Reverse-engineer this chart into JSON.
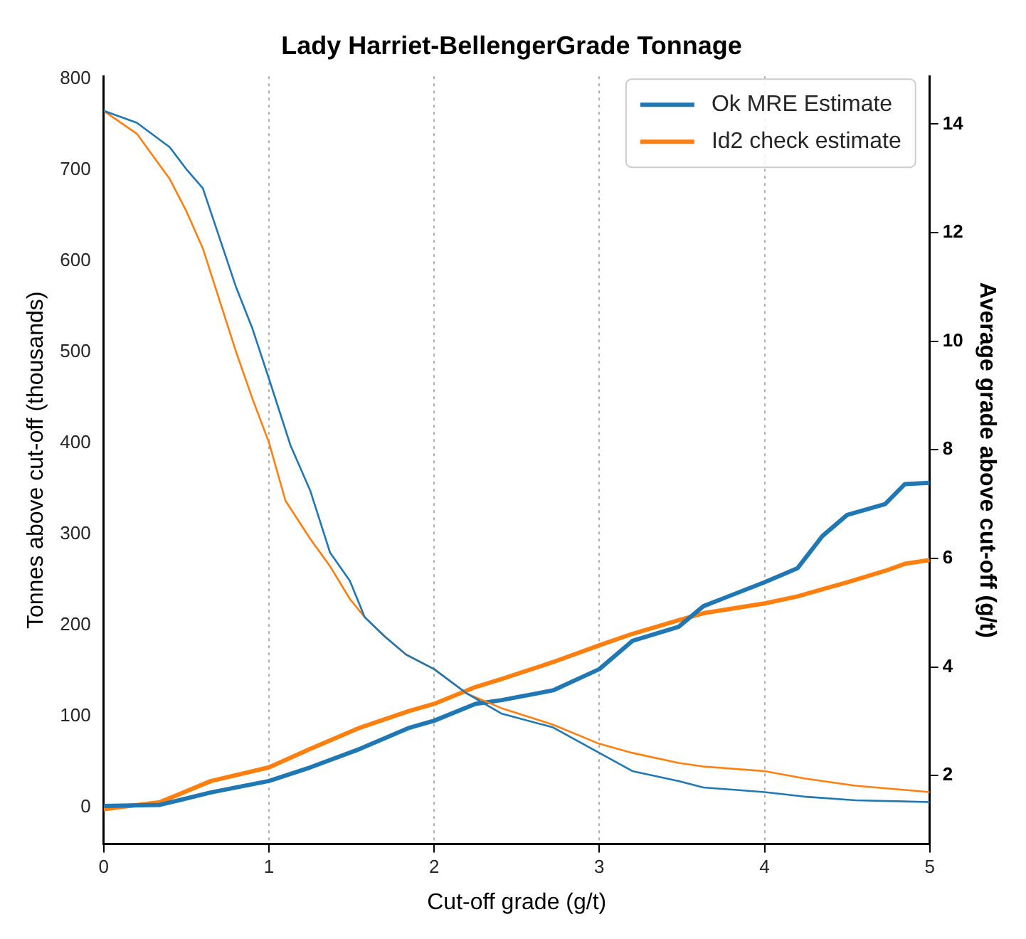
{
  "chart_data": {
    "type": "line",
    "title": "Lady Harriet-BellengerGrade Tonnage",
    "xlabel": "Cut-off grade (g/t)",
    "ylabel": "Tonnes above cut-off (thousands)",
    "y2label": "Average grade above cut-off (g/t)",
    "xlim": [
      0,
      5
    ],
    "xticks": [
      0,
      1,
      2,
      3,
      4,
      5
    ],
    "ylim": [
      -40,
      803
    ],
    "yticks": [
      0,
      100,
      200,
      300,
      400,
      500,
      600,
      700,
      800
    ],
    "y2lim": [
      0.74,
      14.88
    ],
    "y2ticks": [
      2,
      4,
      6,
      8,
      10,
      12,
      14
    ],
    "grid": "x",
    "legend": "top right",
    "series": [
      {
        "color": "#1f77b4",
        "x": [
          0,
          0.2,
          0.4,
          0.5,
          0.6,
          0.8,
          0.9,
          1.0,
          1.13,
          1.25,
          1.37,
          1.49,
          1.58,
          1.7,
          1.83,
          2.0,
          2.2,
          2.41,
          2.72,
          3.0,
          3.2,
          3.48,
          3.63,
          4.0,
          4.24,
          4.55,
          5.0
        ],
        "values": [
          765,
          752,
          725,
          701,
          680,
          572,
          526,
          471,
          398,
          348,
          280,
          249,
          209,
          188,
          168,
          152,
          125,
          103,
          88,
          60,
          40,
          29,
          22,
          17,
          12,
          8,
          6
        ]
      },
      {
        "color": "#ff7f0e",
        "x": [
          0,
          0.2,
          0.4,
          0.5,
          0.6,
          0.8,
          0.9,
          1.0,
          1.1,
          1.25,
          1.37,
          1.49,
          1.58,
          1.7,
          1.83,
          2.0,
          2.2,
          2.41,
          2.72,
          3.0,
          3.2,
          3.48,
          3.63,
          4.0,
          4.24,
          4.55,
          5.0
        ],
        "values": [
          765,
          740,
          690,
          655,
          614,
          501,
          449,
          401,
          337,
          295,
          265,
          229,
          209,
          188,
          168,
          152,
          125,
          109,
          91,
          70,
          60,
          49,
          45,
          40,
          32,
          24,
          17
        ]
      },
      {
        "name": "Ok MRE Estimate",
        "color": "#1f77b4",
        "axis": "y2",
        "x": [
          0,
          0.34,
          0.65,
          1.0,
          1.25,
          1.55,
          1.85,
          2.0,
          2.25,
          2.41,
          2.72,
          3.0,
          3.2,
          3.48,
          3.63,
          4.0,
          4.2,
          4.35,
          4.5,
          4.73,
          4.85,
          5.0
        ],
        "values": [
          1.44,
          1.46,
          1.69,
          1.9,
          2.15,
          2.49,
          2.88,
          3.01,
          3.32,
          3.39,
          3.57,
          3.96,
          4.48,
          4.74,
          5.12,
          5.56,
          5.82,
          6.41,
          6.8,
          7.0,
          7.37,
          7.39
        ]
      },
      {
        "name": "Id2 check estimate",
        "color": "#ff7f0e",
        "axis": "y2",
        "x": [
          0,
          0.34,
          0.65,
          1.0,
          1.25,
          1.55,
          1.85,
          2.0,
          2.25,
          2.41,
          2.72,
          3.0,
          3.2,
          3.48,
          3.63,
          4.0,
          4.2,
          4.35,
          4.5,
          4.73,
          4.85,
          5.0
        ],
        "values": [
          1.38,
          1.51,
          1.9,
          2.15,
          2.49,
          2.88,
          3.19,
          3.32,
          3.63,
          3.78,
          4.09,
          4.4,
          4.61,
          4.86,
          4.99,
          5.17,
          5.3,
          5.43,
          5.56,
          5.77,
          5.9,
          5.97
        ]
      }
    ]
  }
}
